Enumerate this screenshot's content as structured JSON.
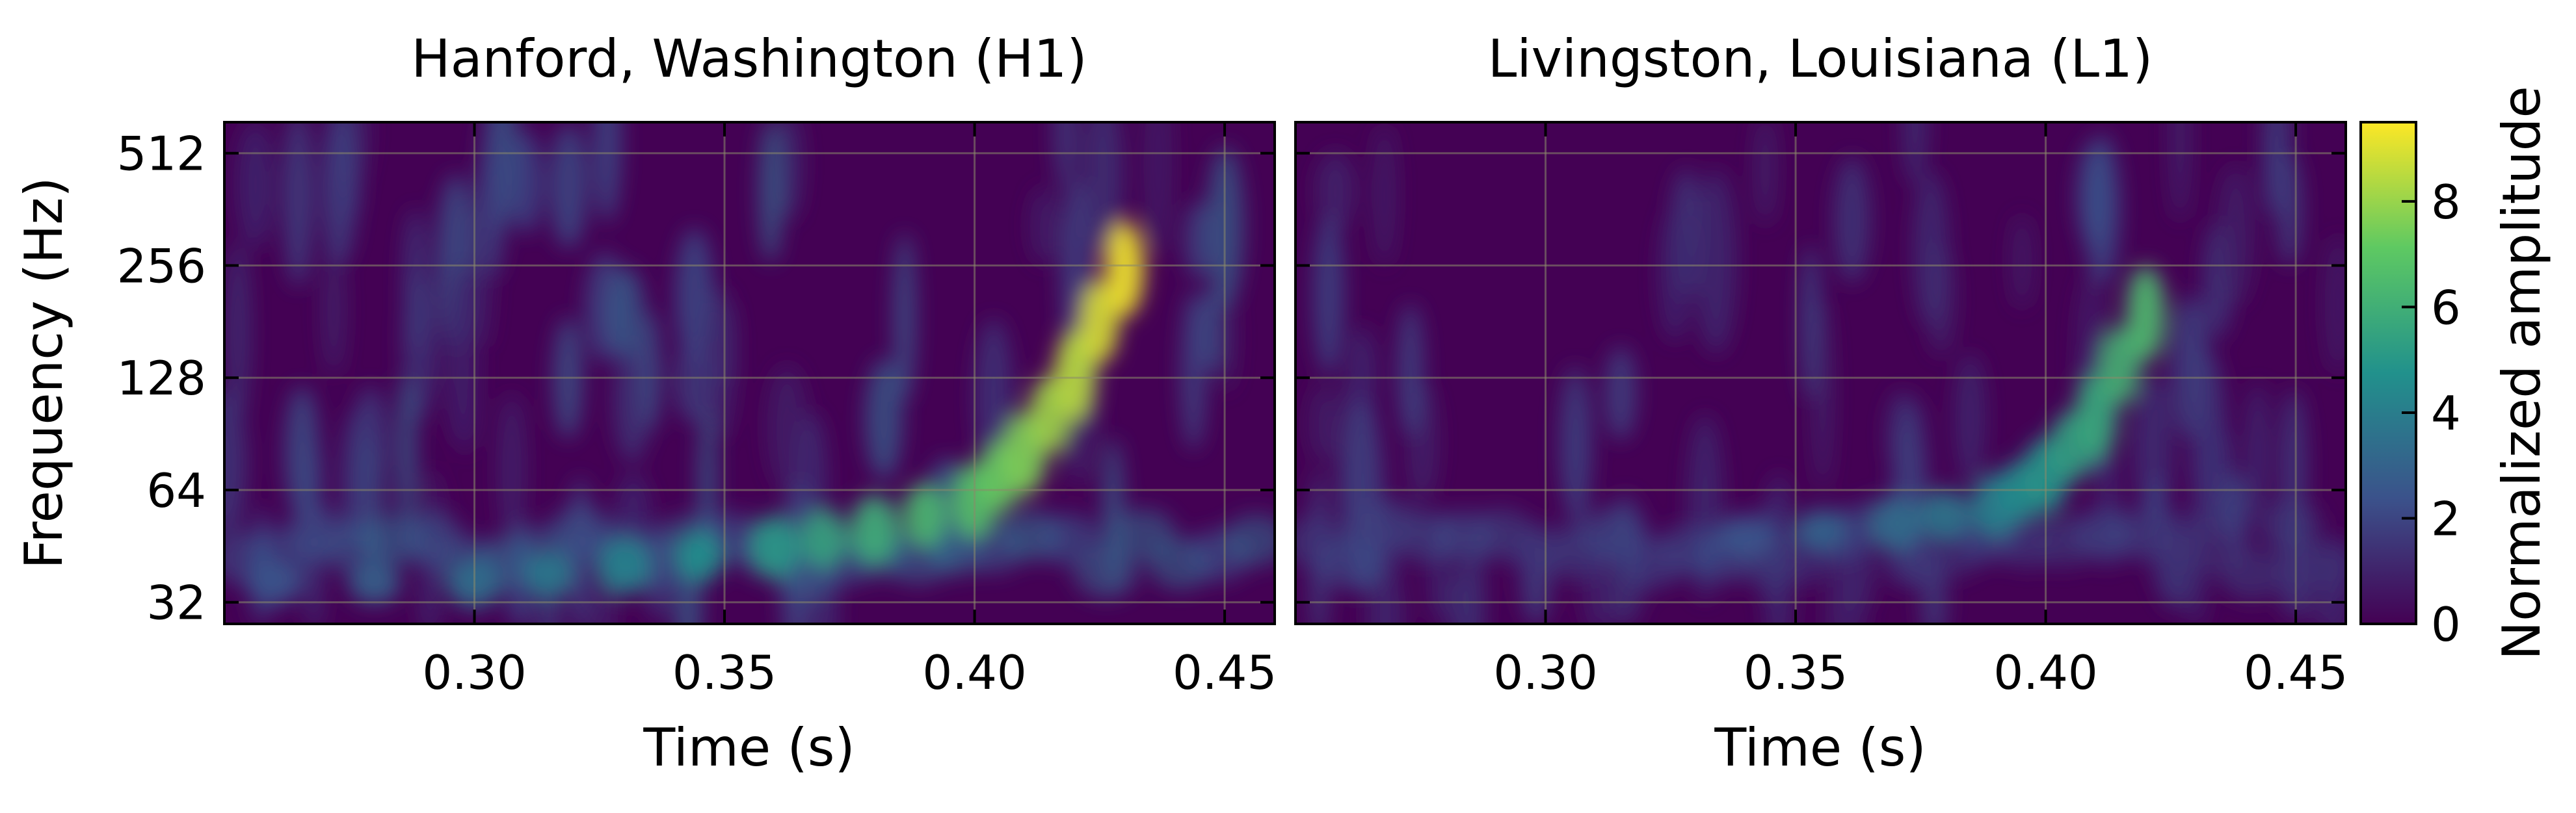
{
  "chart_data": [
    {
      "type": "heatmap",
      "title": "Hanford, Washington (H1)",
      "xlabel": "Time (s)",
      "ylabel": "Frequency (Hz)",
      "xlim": [
        0.25,
        0.46
      ],
      "ylim": [
        28,
        620
      ],
      "yscale": "log2",
      "xticks": [
        0.3,
        0.35,
        0.4,
        0.45
      ],
      "xtick_labels": [
        "0.30",
        "0.35",
        "0.40",
        "0.45"
      ],
      "yticks": [
        32,
        64,
        128,
        256,
        512
      ],
      "ytick_labels": [
        "32",
        "64",
        "128",
        "256",
        "512"
      ],
      "grid": true,
      "chirp": {
        "times": [
          0.26,
          0.3,
          0.33,
          0.36,
          0.38,
          0.4,
          0.41,
          0.42,
          0.43
        ],
        "frequencies": [
          36,
          36,
          40,
          45,
          50,
          60,
          80,
          130,
          250
        ],
        "peak_amplitude": 9.3
      }
    },
    {
      "type": "heatmap",
      "title": "Livingston, Louisiana (L1)",
      "xlabel": "Time (s)",
      "ylabel": "",
      "xlim": [
        0.25,
        0.46
      ],
      "ylim": [
        28,
        620
      ],
      "yscale": "log2",
      "xticks": [
        0.3,
        0.35,
        0.4,
        0.45
      ],
      "xtick_labels": [
        "0.30",
        "0.35",
        "0.40",
        "0.45"
      ],
      "grid": true,
      "chirp": {
        "times": [
          0.34,
          0.37,
          0.39,
          0.4,
          0.41,
          0.42
        ],
        "frequencies": [
          48,
          52,
          58,
          70,
          100,
          190
        ],
        "peak_amplitude": 6.5
      }
    }
  ],
  "colorbar": {
    "label": "Normalized amplitude",
    "vmin": 0,
    "vmax": 9.5,
    "ticks": [
      0,
      2,
      4,
      6,
      8
    ],
    "tick_labels": [
      "0",
      "2",
      "4",
      "6",
      "8"
    ],
    "colormap": "viridis",
    "colors": [
      "#440154",
      "#3b528b",
      "#21918c",
      "#5ec962",
      "#fde725"
    ]
  }
}
